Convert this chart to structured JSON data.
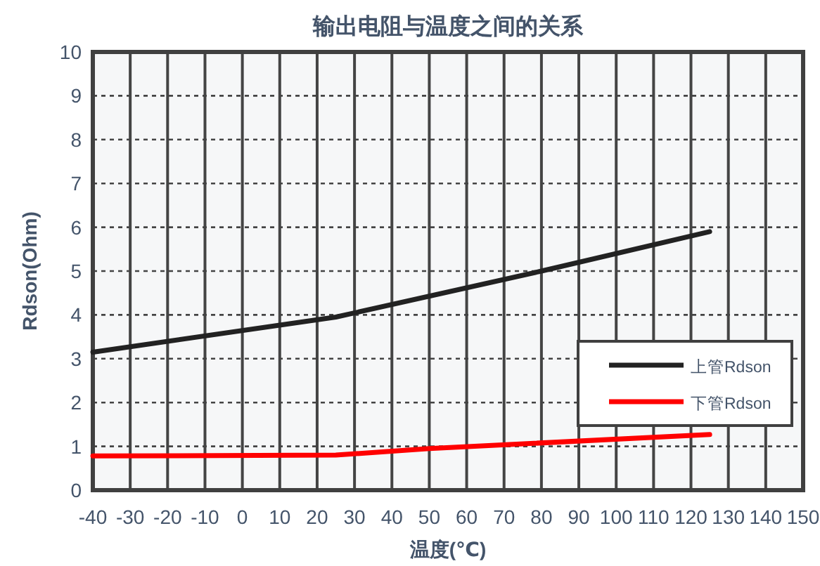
{
  "chart_data": {
    "type": "line",
    "title": "输出电阻与温度之间的关系",
    "xlabel": "温度(℃)",
    "ylabel": "Rdson(Ohm)",
    "x": [
      -40,
      25,
      80,
      125
    ],
    "series": [
      {
        "name": "上管Rdson",
        "color": "#222222",
        "values": [
          3.15,
          3.95,
          5.0,
          5.9
        ]
      },
      {
        "name": "下管Rdson",
        "color": "#ff0000",
        "x": [
          -40,
          25,
          50,
          125
        ],
        "values": [
          0.78,
          0.8,
          0.95,
          1.27
        ]
      }
    ],
    "xlim": [
      -40,
      150
    ],
    "xticks": [
      -40,
      -30,
      -20,
      -10,
      0,
      10,
      20,
      30,
      40,
      50,
      60,
      70,
      80,
      90,
      100,
      110,
      120,
      130,
      140,
      150
    ],
    "ylim": [
      0,
      10
    ],
    "yticks": [
      0,
      1,
      2,
      3,
      4,
      5,
      6,
      7,
      8,
      9,
      10
    ],
    "grid": true,
    "legend": "bottom right",
    "marker": "none",
    "line_style": "solid"
  }
}
